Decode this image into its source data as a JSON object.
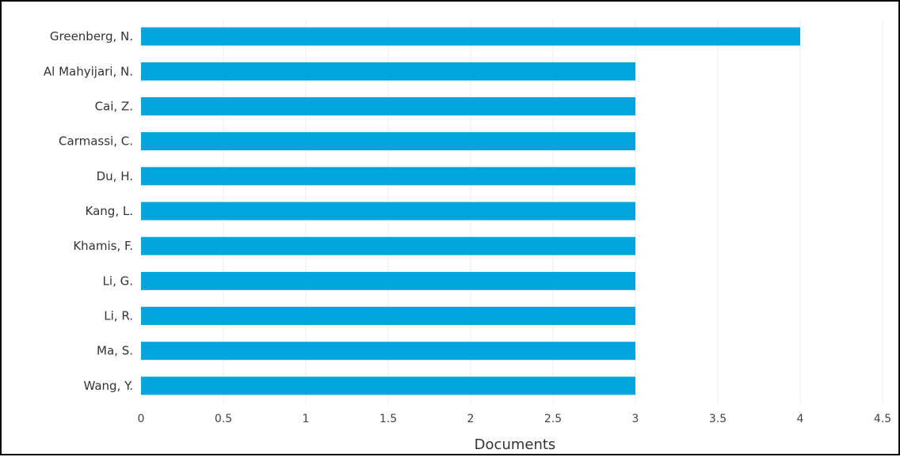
{
  "chart_data": {
    "type": "bar",
    "orientation": "horizontal",
    "categories": [
      "Greenberg, N.",
      "Al Mahyijari, N.",
      "Cai, Z.",
      "Carmassi, C.",
      "Du, H.",
      "Kang, L.",
      "Khamis, F.",
      "Li, G.",
      "Li, R.",
      "Ma, S.",
      "Wang, Y."
    ],
    "values": [
      4,
      3,
      3,
      3,
      3,
      3,
      3,
      3,
      3,
      3,
      3
    ],
    "xlabel": "Documents",
    "ylabel": "",
    "xlim": [
      0,
      4.5
    ],
    "x_ticks": [
      "0",
      "0.5",
      "1",
      "1.5",
      "2",
      "2.5",
      "3",
      "3.5",
      "4",
      "4.5"
    ],
    "grid": "vertical",
    "bar_color": "#00a5dc"
  }
}
